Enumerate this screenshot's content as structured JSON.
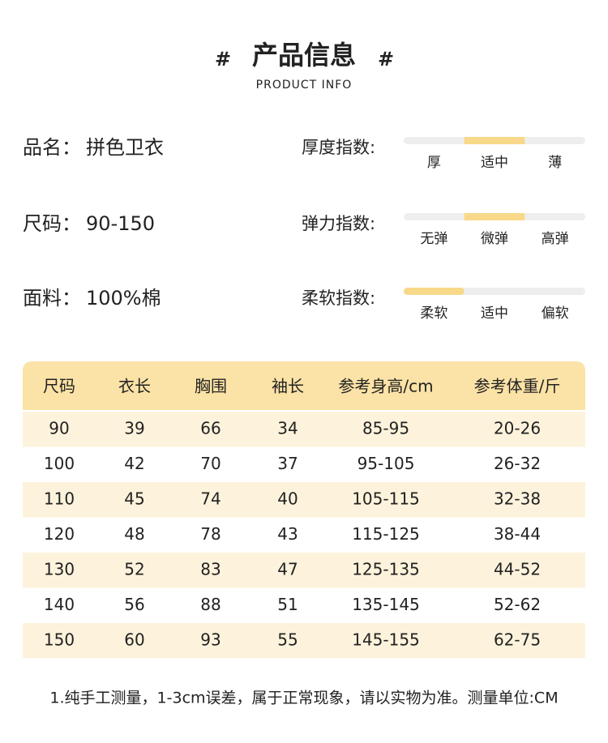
{
  "header": {
    "mark": "#",
    "title": "产品信息",
    "subtitle": "PRODUCT INFO"
  },
  "specs": [
    {
      "label": "品名：",
      "value": "拼色卫衣"
    },
    {
      "label": "尺码：",
      "value": "90-150"
    },
    {
      "label": "面料：",
      "value": "100%棉"
    }
  ],
  "indices": [
    {
      "label": "厚度指数:",
      "options": [
        "厚",
        "适中",
        "薄"
      ],
      "selected": 1
    },
    {
      "label": "弹力指数:",
      "options": [
        "无弹",
        "微弹",
        "高弹"
      ],
      "selected": 1
    },
    {
      "label": "柔软指数:",
      "options": [
        "柔软",
        "适中",
        "偏软"
      ],
      "selected": 0
    }
  ],
  "table": {
    "headers": [
      "尺码",
      "衣长",
      "胸围",
      "袖长",
      "参考身高/cm",
      "参考体重/斤"
    ],
    "rows": [
      [
        "90",
        "39",
        "66",
        "34",
        "85-95",
        "20-26"
      ],
      [
        "100",
        "42",
        "70",
        "37",
        "95-105",
        "26-32"
      ],
      [
        "110",
        "45",
        "74",
        "40",
        "105-115",
        "32-38"
      ],
      [
        "120",
        "48",
        "78",
        "43",
        "115-125",
        "38-44"
      ],
      [
        "130",
        "52",
        "83",
        "47",
        "125-135",
        "44-52"
      ],
      [
        "140",
        "56",
        "88",
        "51",
        "135-145",
        "52-62"
      ],
      [
        "150",
        "60",
        "93",
        "55",
        "145-155",
        "62-75"
      ]
    ]
  },
  "footnote": "1.纯手工测量，1-3cm误差，属于正常现象，请以实物为准。测量单位:CM"
}
